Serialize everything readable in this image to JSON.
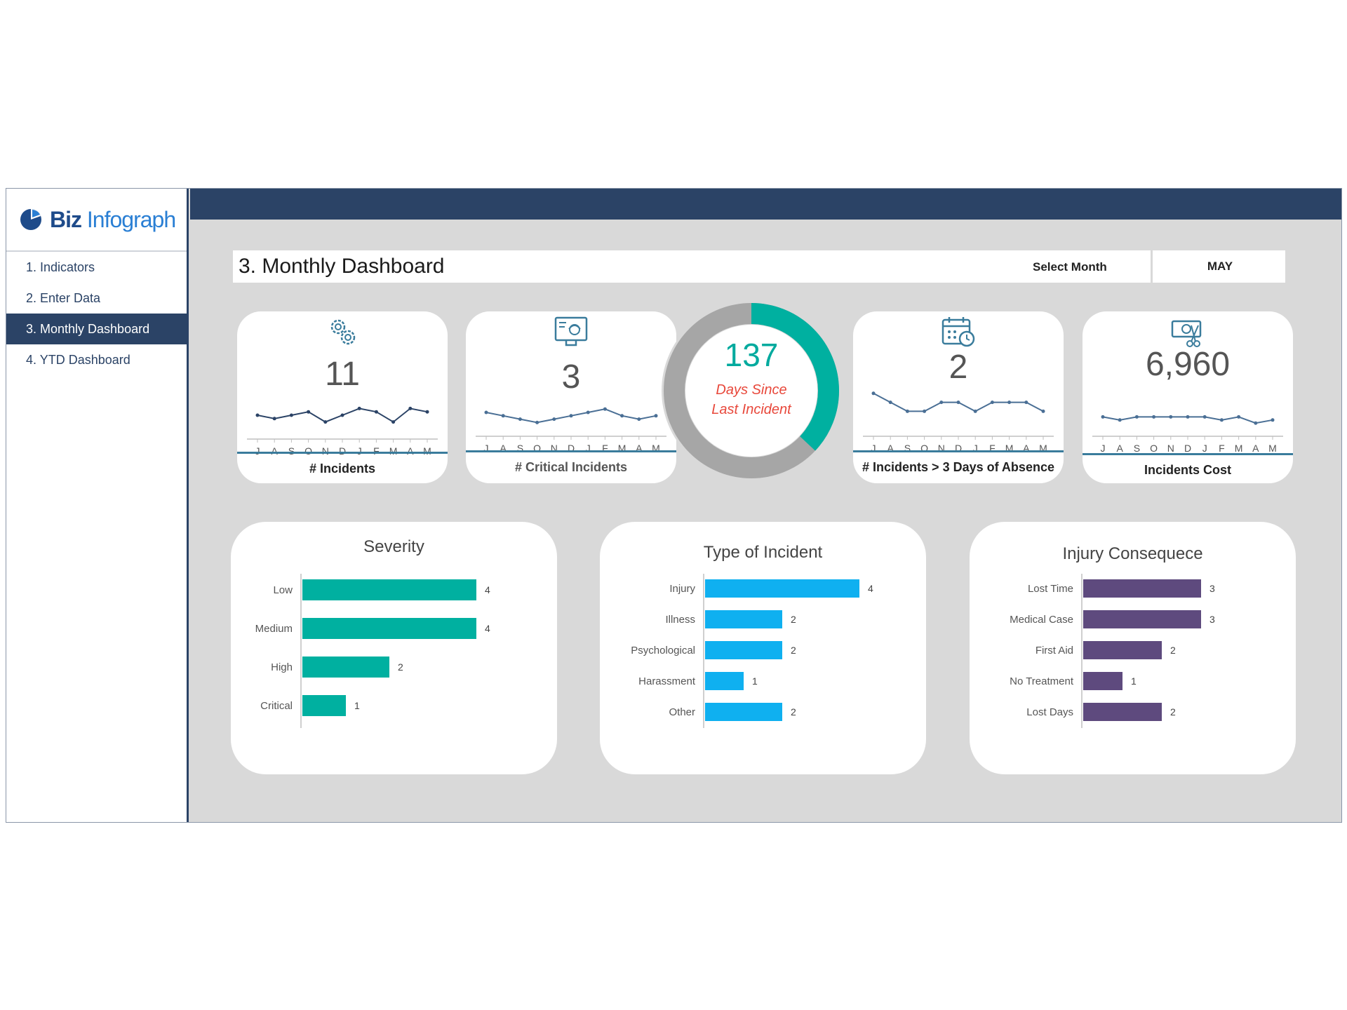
{
  "brand": {
    "name_a": "Biz",
    "name_b": "Infograph"
  },
  "nav": {
    "items": [
      {
        "label": "1. Indicators",
        "active": false
      },
      {
        "label": "2. Enter Data",
        "active": false
      },
      {
        "label": "3. Monthly Dashboard",
        "active": true
      },
      {
        "label": "4. YTD Dashboard",
        "active": false
      }
    ]
  },
  "header": {
    "title": "3. Monthly Dashboard",
    "select_label": "Select Month",
    "select_value": "MAY"
  },
  "months": [
    "J",
    "A",
    "S",
    "O",
    "N",
    "D",
    "J",
    "F",
    "M",
    "A",
    "M"
  ],
  "kpis": {
    "incidents": {
      "value": "11",
      "label": "# Incidents",
      "icon": "gears-icon",
      "trend": [
        5,
        4,
        5,
        6,
        3,
        5,
        7,
        6,
        3,
        7,
        6
      ]
    },
    "critical": {
      "value": "3",
      "label": "# Critical Incidents",
      "icon": "worker-monitor-icon",
      "trend": [
        5,
        4,
        3,
        2,
        3,
        4,
        5,
        6,
        4,
        3,
        4
      ]
    },
    "absence": {
      "value": "2",
      "label": "# Incidents > 3 Days of Absence",
      "icon": "calendar-clock-icon",
      "trend": [
        8,
        6,
        4,
        4,
        6,
        6,
        4,
        6,
        6,
        6,
        4
      ]
    },
    "cost": {
      "value": "6,960",
      "label": "Incidents Cost",
      "icon": "money-scissors-icon",
      "trend": [
        4,
        3,
        4,
        4,
        4,
        4,
        4,
        3,
        4,
        2,
        3
      ]
    }
  },
  "days_since": {
    "value": "137",
    "line1": "Days Since",
    "line2": "Last Incident",
    "fraction": 0.37
  },
  "colors": {
    "navy": "#2b4366",
    "teal": "#00b0a0",
    "blue": "#0fb0f0",
    "purple": "#5e4a7e",
    "gray": "#a6a6a6"
  },
  "chart_data": [
    {
      "type": "bar",
      "orientation": "horizontal",
      "title": "Severity",
      "categories": [
        "Low",
        "Medium",
        "High",
        "Critical"
      ],
      "values": [
        4,
        4,
        2,
        1
      ]
    },
    {
      "type": "bar",
      "orientation": "horizontal",
      "title": "Type of Incident",
      "categories": [
        "Injury",
        "Illness",
        "Psychological",
        "Harassment",
        "Other"
      ],
      "values": [
        4,
        2,
        2,
        1,
        2
      ]
    },
    {
      "type": "bar",
      "orientation": "horizontal",
      "title": "Injury Consequece",
      "categories": [
        "Lost Time",
        "Medical Case",
        "First Aid",
        "No Treatment",
        "Lost Days"
      ],
      "values": [
        3,
        3,
        2,
        1,
        2
      ]
    }
  ]
}
